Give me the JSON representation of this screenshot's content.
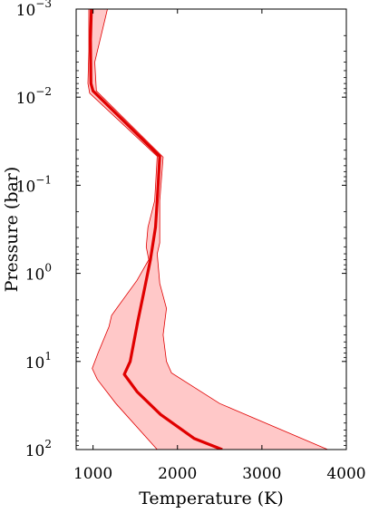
{
  "chart_data": {
    "type": "line",
    "xlabel": "Temperature (K)",
    "ylabel": "Pressure (bar)",
    "xlim": [
      800,
      4000
    ],
    "ylim": [
      0.001,
      100
    ],
    "y_scale": "log",
    "y_reversed": true,
    "grid": false,
    "legend": "none",
    "x_ticks": [
      {
        "value": 1000,
        "label": "1000"
      },
      {
        "value": 2000,
        "label": "2000"
      },
      {
        "value": 3000,
        "label": "3000"
      },
      {
        "value": 4000,
        "label": "4000"
      }
    ],
    "y_ticks": [
      {
        "value": 0.001,
        "base": "10",
        "exp": "−3"
      },
      {
        "value": 0.01,
        "base": "10",
        "exp": "−2"
      },
      {
        "value": 0.1,
        "base": "10",
        "exp": "−1"
      },
      {
        "value": 1,
        "base": "10",
        "exp": "0"
      },
      {
        "value": 10,
        "base": "10",
        "exp": "1"
      },
      {
        "value": 100,
        "base": "10",
        "exp": "2"
      }
    ],
    "series": [
      {
        "kind": "median",
        "color": "#e00000",
        "points": [
          {
            "T": 980,
            "P": 0.001
          },
          {
            "T": 970,
            "P": 0.0022
          },
          {
            "T": 975,
            "P": 0.007
          },
          {
            "T": 1000,
            "P": 0.0085
          },
          {
            "T": 1790,
            "P": 0.047
          },
          {
            "T": 1760,
            "P": 0.15
          },
          {
            "T": 1740,
            "P": 0.3
          },
          {
            "T": 1680,
            "P": 0.7
          },
          {
            "T": 1610,
            "P": 1.5
          },
          {
            "T": 1530,
            "P": 3.5
          },
          {
            "T": 1440,
            "P": 10
          },
          {
            "T": 1370,
            "P": 14
          },
          {
            "T": 1520,
            "P": 22
          },
          {
            "T": 1800,
            "P": 40
          },
          {
            "T": 2200,
            "P": 75
          },
          {
            "T": 2530,
            "P": 100
          }
        ]
      },
      {
        "kind": "uncertainty_band",
        "color": "#e00000",
        "fill": "#ffc8c8",
        "upper_T": [
          {
            "T": 1170,
            "P": 0.001
          },
          {
            "T": 1020,
            "P": 0.004
          },
          {
            "T": 1040,
            "P": 0.0085
          },
          {
            "T": 1830,
            "P": 0.048
          },
          {
            "T": 1790,
            "P": 0.15
          },
          {
            "T": 1790,
            "P": 0.45
          },
          {
            "T": 1760,
            "P": 0.6
          },
          {
            "T": 1790,
            "P": 1.3
          },
          {
            "T": 1870,
            "P": 2.5
          },
          {
            "T": 1830,
            "P": 5
          },
          {
            "T": 1870,
            "P": 10
          },
          {
            "T": 1930,
            "P": 13.5
          },
          {
            "T": 2500,
            "P": 30
          },
          {
            "T": 3780,
            "P": 100
          }
        ],
        "lower_T": [
          {
            "T": 950,
            "P": 0.001
          },
          {
            "T": 950,
            "P": 0.003
          },
          {
            "T": 940,
            "P": 0.007
          },
          {
            "T": 960,
            "P": 0.009
          },
          {
            "T": 1760,
            "P": 0.047
          },
          {
            "T": 1730,
            "P": 0.15
          },
          {
            "T": 1650,
            "P": 0.3
          },
          {
            "T": 1630,
            "P": 0.5
          },
          {
            "T": 1660,
            "P": 0.7
          },
          {
            "T": 1520,
            "P": 1.2
          },
          {
            "T": 1220,
            "P": 3
          },
          {
            "T": 1190,
            "P": 4
          },
          {
            "T": 1060,
            "P": 8
          },
          {
            "T": 990,
            "P": 12
          },
          {
            "T": 1050,
            "P": 16
          },
          {
            "T": 1270,
            "P": 30
          },
          {
            "T": 1760,
            "P": 100
          }
        ]
      }
    ]
  }
}
